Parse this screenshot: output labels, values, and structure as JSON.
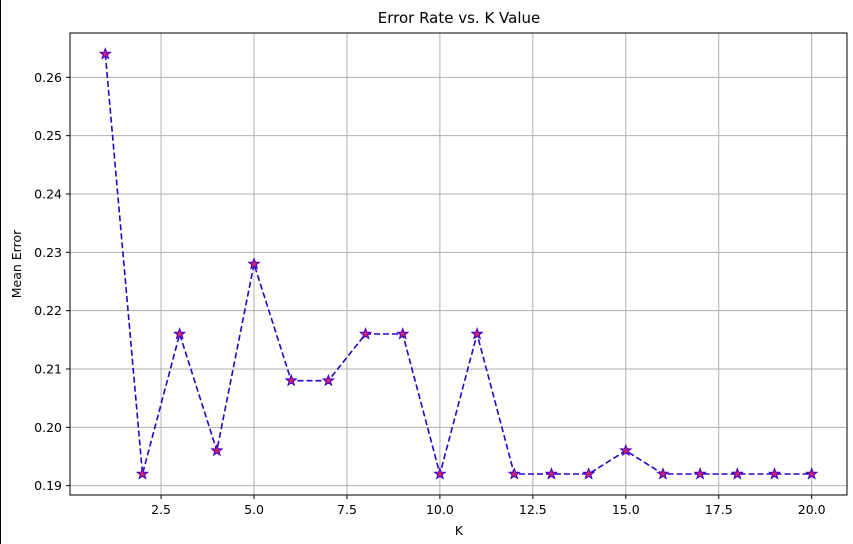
{
  "chart_data": {
    "type": "line",
    "title": "Error Rate vs. K Value",
    "xlabel": "K",
    "ylabel": "Mean Error",
    "xlim": [
      0.05,
      20.95
    ],
    "ylim": [
      0.1884,
      0.2676
    ],
    "xticks": [
      2.5,
      5.0,
      7.5,
      10.0,
      12.5,
      15.0,
      17.5,
      20.0
    ],
    "xtick_labels": [
      "2.5",
      "5.0",
      "7.5",
      "10.0",
      "12.5",
      "15.0",
      "17.5",
      "20.0"
    ],
    "yticks": [
      0.19,
      0.2,
      0.21,
      0.22,
      0.23,
      0.24,
      0.25,
      0.26
    ],
    "ytick_labels": [
      "0.19",
      "0.20",
      "0.21",
      "0.22",
      "0.23",
      "0.24",
      "0.25",
      "0.26"
    ],
    "grid": true,
    "line_style": "dashed",
    "marker": "star",
    "colors": {
      "line": "#2a00cc",
      "marker_fill": "#d0206e",
      "marker_edge": "#3a00d0",
      "grid": "#b0b0b0"
    },
    "series": [
      {
        "x": [
          1,
          2,
          3,
          4,
          5,
          6,
          7,
          8,
          9,
          10,
          11,
          12,
          13,
          14,
          15,
          16,
          17,
          18,
          19,
          20
        ],
        "values": [
          0.264,
          0.192,
          0.216,
          0.196,
          0.228,
          0.208,
          0.208,
          0.216,
          0.216,
          0.192,
          0.216,
          0.192,
          0.192,
          0.192,
          0.196,
          0.192,
          0.192,
          0.192,
          0.192,
          0.192
        ]
      }
    ]
  }
}
